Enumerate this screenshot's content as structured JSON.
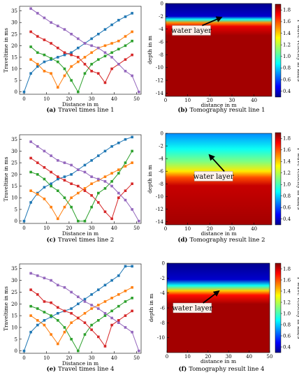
{
  "colorbar": {
    "label": "P-wave velocity in km/s",
    "ticks": [
      0.4,
      0.6,
      0.8,
      1.0,
      1.2,
      1.4,
      1.6,
      1.8
    ]
  },
  "panels": [
    {
      "letter": "(a)",
      "text": "Travel times line 1"
    },
    {
      "letter": "(b)",
      "text": "Tomography result line 1"
    },
    {
      "letter": "(c)",
      "text": "Travel times line 2"
    },
    {
      "letter": "(d)",
      "text": "Tomography result line 2"
    },
    {
      "letter": "(e)",
      "text": "Travel times line 4"
    },
    {
      "letter": "(f)",
      "text": "Tomography result line 4"
    }
  ],
  "chart_data": [
    {
      "type": "line",
      "title": "",
      "xlabel": "Distance in m",
      "ylabel": "Traveltime in ms",
      "xlim": [
        -2,
        52
      ],
      "ylim": [
        -1,
        37
      ],
      "xticks": [
        0,
        10,
        20,
        30,
        40,
        50
      ],
      "yticks": [
        0,
        5,
        10,
        15,
        20,
        25,
        30,
        35
      ],
      "series": [
        {
          "color": "#1f77b4",
          "x": [
            0,
            3,
            6,
            9,
            12,
            15,
            18,
            21,
            24,
            27,
            30,
            33,
            36,
            39,
            42,
            45,
            48
          ],
          "y": [
            0,
            8,
            11,
            13,
            14,
            15,
            16,
            17,
            19,
            21,
            23,
            25,
            27,
            29,
            31,
            32.5,
            34
          ]
        },
        {
          "color": "#ff7f0e",
          "x": [
            3,
            6,
            9,
            12,
            15,
            18,
            21,
            24,
            27,
            30,
            33,
            36,
            39,
            42,
            45,
            48
          ],
          "y": [
            14,
            12,
            9,
            8,
            2,
            7,
            11,
            13,
            15,
            17,
            19,
            20,
            21,
            22,
            24,
            26
          ]
        },
        {
          "color": "#2ca02c",
          "x": [
            3,
            6,
            9,
            12,
            15,
            18,
            21,
            24,
            27,
            30,
            33,
            36,
            39,
            42,
            45,
            48
          ],
          "y": [
            19.5,
            17,
            16,
            14.5,
            13,
            10,
            5,
            0,
            8,
            12,
            14,
            15.5,
            17,
            18.5,
            20,
            22
          ]
        },
        {
          "color": "#d62728",
          "x": [
            3,
            6,
            9,
            12,
            15,
            18,
            21,
            24,
            27,
            30,
            33,
            36,
            39,
            42,
            45,
            48
          ],
          "y": [
            26,
            24,
            22.5,
            21,
            19,
            17,
            16,
            15,
            12,
            9,
            8,
            4,
            10,
            12,
            14,
            16
          ]
        },
        {
          "color": "#9467bd",
          "x": [
            3,
            6,
            9,
            12,
            15,
            18,
            21,
            24,
            27,
            30,
            33,
            36,
            39,
            42,
            45,
            48,
            51
          ],
          "y": [
            36,
            34,
            32,
            30,
            28.5,
            27,
            25,
            23,
            21,
            20,
            19,
            17,
            15,
            12,
            9,
            7,
            0
          ]
        }
      ]
    },
    {
      "type": "heatmap",
      "title": "",
      "xlabel": "distance in m",
      "ylabel": "depth in m",
      "xlim": [
        0,
        48
      ],
      "ylim": [
        -14.5,
        0
      ],
      "xticks": [
        0,
        10,
        20,
        30,
        40
      ],
      "yticks": [
        0,
        -2,
        -4,
        -6,
        -8,
        -10,
        -12,
        -14
      ],
      "colorbar_range": [
        0.3,
        1.9
      ],
      "annotation": "water layer",
      "arrow_target": [
        25,
        -2.2
      ],
      "label_anchor": [
        3,
        -4.2
      ],
      "profile": [
        [
          0,
          0.3
        ],
        [
          2.0,
          0.4
        ],
        [
          2.5,
          0.9
        ],
        [
          3.0,
          1.5
        ],
        [
          3.6,
          1.75
        ],
        [
          5,
          1.85
        ],
        [
          14.5,
          1.85
        ]
      ]
    },
    {
      "type": "line",
      "title": "",
      "xlabel": "Distance in m",
      "ylabel": "Traveltime in ms",
      "xlim": [
        -2,
        52
      ],
      "ylim": [
        -1,
        37
      ],
      "xticks": [
        0,
        10,
        20,
        30,
        40,
        50
      ],
      "yticks": [
        0,
        5,
        10,
        15,
        20,
        25,
        30,
        35
      ],
      "series": [
        {
          "color": "#1f77b4",
          "x": [
            0,
            3,
            6,
            9,
            12,
            15,
            18,
            21,
            24,
            27,
            30,
            33,
            36,
            39,
            42,
            45,
            48
          ],
          "y": [
            0,
            8,
            12,
            14.5,
            16,
            18,
            19,
            20,
            22,
            24,
            26,
            28,
            30,
            32,
            33.5,
            35,
            36
          ]
        },
        {
          "color": "#ff7f0e",
          "x": [
            3,
            6,
            9,
            12,
            15,
            18,
            21,
            24,
            27,
            30,
            33,
            36,
            39,
            42,
            45,
            48
          ],
          "y": [
            13,
            11.5,
            9.5,
            6,
            1,
            6,
            10,
            12,
            14,
            16,
            17.5,
            19,
            20.5,
            22,
            23.5,
            25
          ]
        },
        {
          "color": "#2ca02c",
          "x": [
            3,
            6,
            9,
            12,
            15,
            18,
            21,
            24,
            27,
            30,
            33,
            36,
            39,
            42,
            45,
            48
          ],
          "y": [
            21,
            20,
            18,
            15,
            13,
            10,
            6,
            0,
            0,
            6,
            12,
            14,
            17,
            20.5,
            25,
            30
          ]
        },
        {
          "color": "#d62728",
          "x": [
            3,
            6,
            9,
            12,
            15,
            18,
            21,
            24,
            27,
            30,
            33,
            36,
            39,
            42,
            45,
            48
          ],
          "y": [
            27,
            25,
            23,
            21,
            19,
            17.5,
            16,
            15,
            13,
            11,
            8,
            4,
            1,
            10,
            13,
            16
          ]
        },
        {
          "color": "#9467bd",
          "x": [
            3,
            6,
            9,
            12,
            15,
            18,
            21,
            24,
            27,
            30,
            33,
            36,
            39,
            42,
            45,
            48,
            51
          ],
          "y": [
            34,
            32,
            30,
            28,
            26,
            25,
            24,
            22,
            21,
            19,
            18,
            17,
            15,
            12,
            9,
            5,
            0
          ]
        }
      ]
    },
    {
      "type": "heatmap",
      "title": "",
      "xlabel": "distance in m",
      "ylabel": "depth in m",
      "xlim": [
        0,
        48
      ],
      "ylim": [
        -14.5,
        0
      ],
      "xticks": [
        0,
        10,
        20,
        30,
        40
      ],
      "yticks": [
        0,
        -2,
        -4,
        -6,
        -8,
        -10,
        -12,
        -14
      ],
      "colorbar_range": [
        0.3,
        1.9
      ],
      "annotation": "water layer",
      "arrow_target": [
        20,
        -3.5
      ],
      "label_anchor": [
        13,
        -6.8
      ],
      "profile": [
        [
          0,
          0.7
        ],
        [
          2.5,
          0.9
        ],
        [
          4.5,
          1.1
        ],
        [
          6.0,
          1.35
        ],
        [
          7.0,
          1.6
        ],
        [
          8.3,
          1.8
        ],
        [
          14.5,
          1.85
        ]
      ]
    },
    {
      "type": "line",
      "title": "",
      "xlabel": "Distance in m",
      "ylabel": "Traveltime in ms",
      "xlim": [
        -2,
        52
      ],
      "ylim": [
        -1,
        37
      ],
      "xticks": [
        0,
        10,
        20,
        30,
        40,
        50
      ],
      "yticks": [
        0,
        5,
        10,
        15,
        20,
        25,
        30,
        35
      ],
      "series": [
        {
          "color": "#1f77b4",
          "x": [
            0,
            3,
            6,
            9,
            12,
            15,
            18,
            21,
            24,
            27,
            30,
            33,
            36,
            39,
            42,
            45,
            48
          ],
          "y": [
            0,
            8,
            11,
            13,
            14.5,
            16,
            17,
            18,
            20,
            22,
            24,
            26,
            28,
            30,
            32,
            36,
            36
          ]
        },
        {
          "color": "#ff7f0e",
          "x": [
            3,
            6,
            9,
            12,
            15,
            18,
            21,
            24,
            27,
            30,
            33,
            36,
            39,
            42,
            45,
            48
          ],
          "y": [
            15,
            13,
            11,
            7,
            3,
            8,
            12,
            14,
            16,
            18,
            19.5,
            21,
            22.5,
            24,
            25.5,
            27
          ]
        },
        {
          "color": "#2ca02c",
          "x": [
            3,
            6,
            9,
            12,
            15,
            18,
            21,
            24,
            27,
            30,
            33,
            36,
            39,
            42,
            45,
            48
          ],
          "y": [
            19,
            18,
            16.5,
            15,
            13,
            10,
            5,
            0,
            7,
            11,
            13,
            15,
            17,
            19,
            21,
            22.5
          ]
        },
        {
          "color": "#d62728",
          "x": [
            3,
            6,
            9,
            12,
            15,
            18,
            21,
            24,
            27,
            30,
            33,
            36,
            39,
            42,
            45,
            48
          ],
          "y": [
            26,
            24,
            21,
            20.5,
            18.5,
            17,
            16,
            14,
            12,
            9,
            6,
            2,
            11,
            13,
            15,
            17
          ]
        },
        {
          "color": "#9467bd",
          "x": [
            3,
            6,
            9,
            12,
            15,
            18,
            21,
            24,
            27,
            30,
            33,
            36,
            39,
            42,
            45,
            48,
            51
          ],
          "y": [
            33,
            32,
            31,
            30,
            28,
            27,
            25,
            23,
            21,
            19.5,
            18,
            16,
            14,
            12,
            10,
            8,
            0
          ]
        }
      ]
    },
    {
      "type": "heatmap",
      "title": "",
      "xlabel": "distance in m",
      "ylabel": "depth in m",
      "xlim": [
        0,
        50
      ],
      "ylim": [
        -12,
        0
      ],
      "xticks": [
        0,
        10,
        20,
        30,
        40,
        50
      ],
      "yticks": [
        0,
        -2,
        -4,
        -6,
        -8,
        -10
      ],
      "colorbar_range": [
        0.3,
        1.9
      ],
      "annotation": "water layer",
      "arrow_target": [
        25,
        -3.8
      ],
      "label_anchor": [
        3,
        -6
      ],
      "profile": [
        [
          0,
          0.3
        ],
        [
          2.2,
          0.4
        ],
        [
          3.0,
          0.9
        ],
        [
          3.7,
          1.4
        ],
        [
          4.3,
          1.7
        ],
        [
          5.5,
          1.85
        ],
        [
          12,
          1.85
        ]
      ]
    }
  ]
}
